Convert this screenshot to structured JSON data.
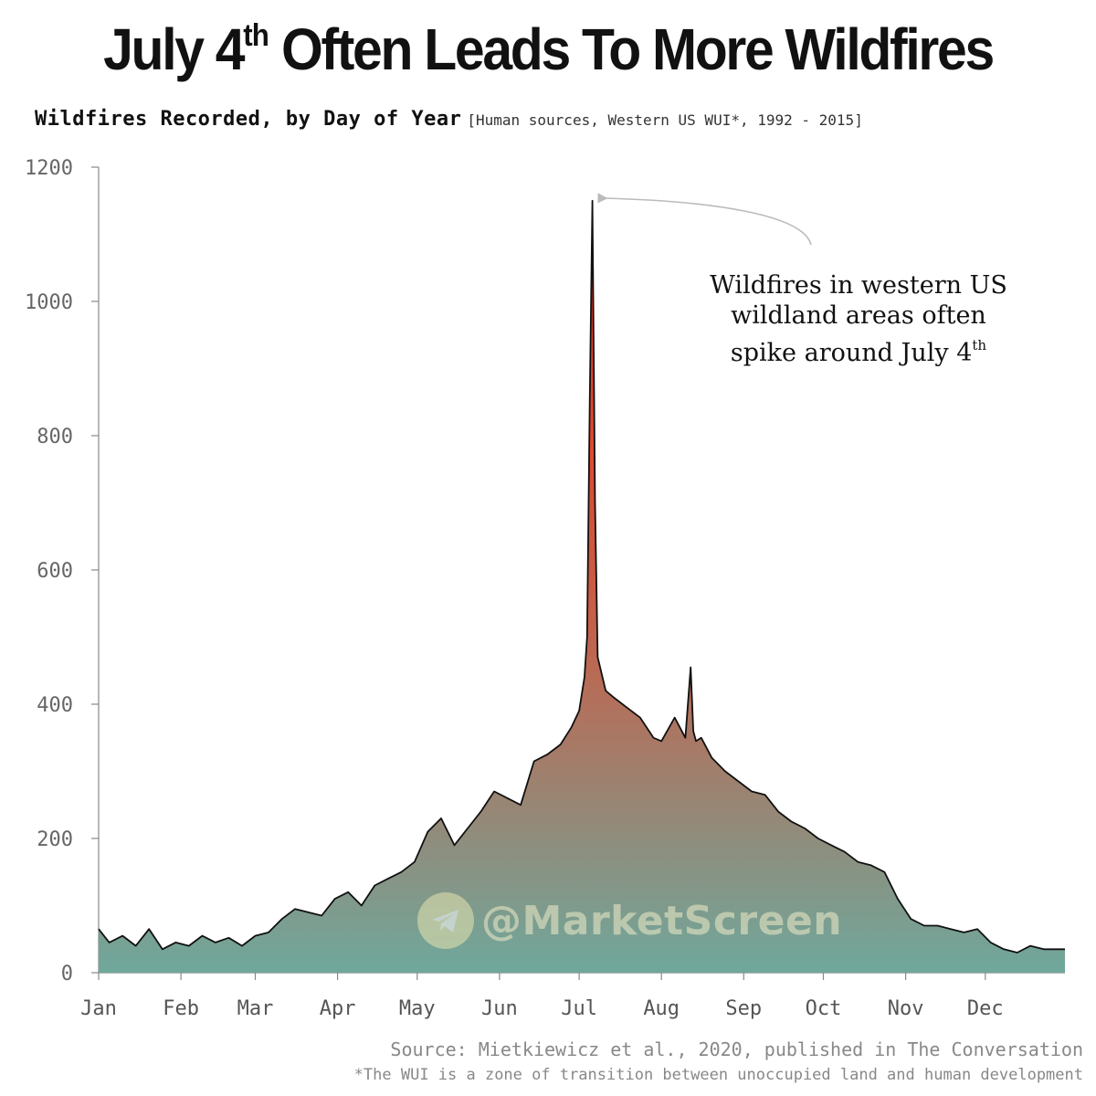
{
  "title": {
    "prefix": "July 4",
    "superscript": "th",
    "suffix": " Often Leads To More Wildfires"
  },
  "subtitle": {
    "main": "Wildfires Recorded, by Day of Year",
    "detail": "[Human sources, Western US WUI*, 1992 - 2015]"
  },
  "annotation": {
    "line1": "Wildfires in western US",
    "line2": "wildland areas often",
    "line3_prefix": "spike around July 4",
    "line3_sup": "th"
  },
  "watermark": {
    "text": "@MarketScreen",
    "icon": "telegram-plane-icon"
  },
  "source": {
    "line1": "Source: Mietkiewicz et al., 2020, published in The Conversation",
    "line2": "*The WUI is a zone of transition between unoccupied land and human development"
  },
  "colors": {
    "fill_top": "#ff2a10",
    "fill_mid": "#c4614a",
    "fill_bottom": "#6fa89c",
    "line": "#111111",
    "arrow": "#bbbbbb"
  },
  "chart_data": {
    "type": "area",
    "title": "Wildfires Recorded, by Day of Year",
    "xlabel": "",
    "ylabel": "",
    "ylim": [
      0,
      1200
    ],
    "yticks": [
      0,
      200,
      400,
      600,
      800,
      1000,
      1200
    ],
    "ytick_labels": [
      "0",
      "200",
      "400",
      "600",
      "800",
      "1000",
      "1200"
    ],
    "month_labels": [
      "Jan",
      "Feb",
      "Mar",
      "Apr",
      "May",
      "Jun",
      "Jul",
      "Aug",
      "Sep",
      "Oct",
      "Nov",
      "Dec"
    ],
    "month_start_days": [
      1,
      32,
      60,
      91,
      121,
      152,
      182,
      213,
      244,
      274,
      305,
      335
    ],
    "x_range": [
      1,
      365
    ],
    "series": [
      {
        "name": "Wildfires recorded (approx., read at ~5-day steps)",
        "x": [
          1,
          5,
          10,
          15,
          20,
          25,
          30,
          35,
          40,
          45,
          50,
          55,
          60,
          65,
          70,
          75,
          80,
          85,
          90,
          95,
          100,
          105,
          110,
          115,
          120,
          125,
          130,
          135,
          140,
          145,
          150,
          155,
          160,
          165,
          170,
          175,
          179,
          182,
          184,
          185,
          186,
          187,
          188,
          189,
          192,
          195,
          200,
          205,
          210,
          213,
          218,
          222,
          224,
          225,
          226,
          228,
          232,
          237,
          242,
          247,
          252,
          257,
          262,
          267,
          272,
          277,
          282,
          287,
          292,
          297,
          302,
          307,
          312,
          317,
          322,
          327,
          332,
          337,
          342,
          347,
          352,
          357,
          362,
          365
        ],
        "y": [
          65,
          45,
          55,
          40,
          65,
          35,
          45,
          40,
          55,
          45,
          52,
          40,
          55,
          60,
          80,
          95,
          90,
          85,
          110,
          120,
          100,
          130,
          140,
          150,
          165,
          210,
          230,
          190,
          215,
          240,
          270,
          260,
          250,
          315,
          325,
          340,
          365,
          390,
          440,
          500,
          850,
          1150,
          700,
          470,
          420,
          410,
          395,
          380,
          350,
          345,
          380,
          350,
          455,
          360,
          345,
          350,
          320,
          300,
          285,
          270,
          265,
          240,
          225,
          215,
          200,
          190,
          180,
          165,
          160,
          150,
          110,
          80,
          70,
          70,
          65,
          60,
          65,
          45,
          35,
          30,
          40,
          35,
          35,
          35
        ]
      }
    ],
    "annotation_text": "Wildfires in western US wildland areas often spike around July 4th",
    "peak": {
      "day": 187,
      "value": 1150,
      "label": "July 4th"
    }
  }
}
